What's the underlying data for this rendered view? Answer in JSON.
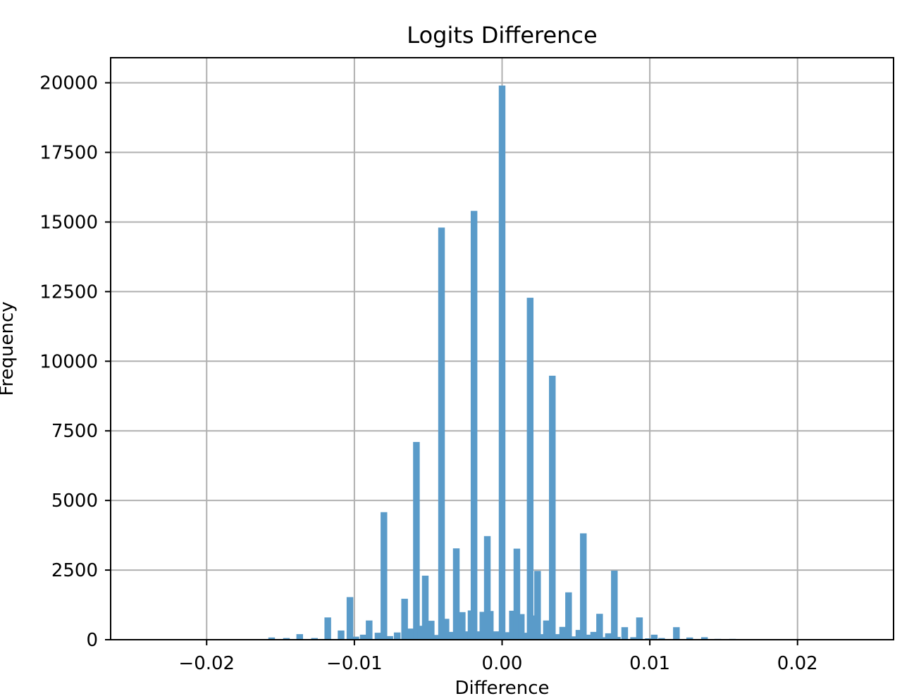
{
  "chart_data": {
    "type": "bar",
    "title": "Logits Difference",
    "xlabel": "Difference",
    "ylabel": "Frequency",
    "xlim": [
      -0.0265,
      0.0265
    ],
    "ylim": [
      0,
      20900
    ],
    "grid": true,
    "legend": "none",
    "bar_color": "#5a9bc9",
    "bin_width": 0.00045,
    "x_ticks": [
      {
        "value": -0.02,
        "label": "−0.02"
      },
      {
        "value": -0.01,
        "label": "−0.01"
      },
      {
        "value": 0.0,
        "label": "0.00"
      },
      {
        "value": 0.01,
        "label": "0.01"
      },
      {
        "value": 0.02,
        "label": "0.02"
      }
    ],
    "y_ticks": [
      {
        "value": 0,
        "label": "0"
      },
      {
        "value": 2500,
        "label": "2500"
      },
      {
        "value": 5000,
        "label": "5000"
      },
      {
        "value": 7500,
        "label": "7500"
      },
      {
        "value": 10000,
        "label": "10000"
      },
      {
        "value": 12500,
        "label": "12500"
      },
      {
        "value": 15000,
        "label": "15000"
      },
      {
        "value": 17500,
        "label": "17500"
      },
      {
        "value": 20000,
        "label": "20000"
      }
    ],
    "x": [
      -0.0156,
      -0.0146,
      -0.0137,
      -0.0127,
      -0.0118,
      -0.0109,
      -0.0103,
      -0.0099,
      -0.0094,
      -0.009,
      -0.0084,
      -0.008,
      -0.0076,
      -0.0071,
      -0.0066,
      -0.0062,
      -0.0058,
      -0.0055,
      -0.0052,
      -0.0048,
      -0.0044,
      -0.0041,
      -0.0038,
      -0.0035,
      -0.0031,
      -0.0027,
      -0.0024,
      -0.0021,
      -0.0019,
      -0.0016,
      -0.0013,
      -0.001,
      -0.0008,
      -0.0004,
      -0.0001,
      0.0,
      0.0003,
      0.0007,
      0.001,
      0.0013,
      0.0017,
      0.0019,
      0.0021,
      0.0024,
      0.0028,
      0.003,
      0.0034,
      0.0038,
      0.0041,
      0.0045,
      0.0048,
      0.0052,
      0.0055,
      0.0058,
      0.0062,
      0.0066,
      0.0069,
      0.0072,
      0.0076,
      0.0078,
      0.0083,
      0.0089,
      0.0093,
      0.0099,
      0.0103,
      0.0108,
      0.0118,
      0.0127,
      0.0137,
      0.0146,
      0.0156
    ],
    "values": [
      80,
      60,
      200,
      60,
      800,
      330,
      1530,
      110,
      180,
      690,
      250,
      4580,
      130,
      260,
      1470,
      400,
      7100,
      500,
      2300,
      680,
      170,
      14800,
      750,
      280,
      3280,
      990,
      300,
      1050,
      15400,
      300,
      1000,
      3720,
      1030,
      300,
      260,
      19900,
      270,
      1040,
      3270,
      920,
      250,
      12280,
      870,
      2470,
      200,
      690,
      9480,
      200,
      460,
      1700,
      120,
      350,
      3820,
      180,
      280,
      930,
      90,
      230,
      2480,
      100,
      450,
      90,
      800,
      50,
      180,
      60,
      450,
      80,
      90,
      30,
      30
    ]
  }
}
